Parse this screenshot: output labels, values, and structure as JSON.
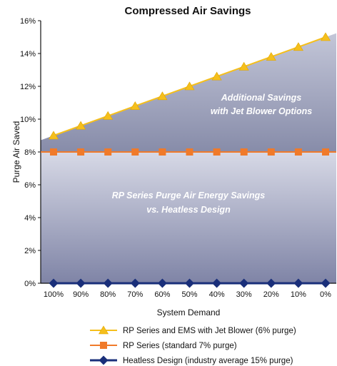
{
  "chart_data": {
    "type": "line",
    "title": "Compressed Air Savings",
    "xlabel": "System Demand",
    "ylabel": "Purge Air Saved",
    "categories": [
      "100%",
      "90%",
      "80%",
      "70%",
      "60%",
      "50%",
      "40%",
      "30%",
      "20%",
      "10%",
      "0%"
    ],
    "ylim": [
      0,
      16
    ],
    "yticks": [
      0,
      2,
      4,
      6,
      8,
      10,
      12,
      14,
      16
    ],
    "ytick_labels": [
      "0%",
      "2%",
      "4%",
      "6%",
      "8%",
      "10%",
      "12%",
      "14%",
      "16%"
    ],
    "series": [
      {
        "name": "RP Series and EMS with Jet Blower (6% purge)",
        "color": "#F5BF1C",
        "marker": "triangle",
        "values": [
          9.0,
          9.6,
          10.2,
          10.8,
          11.4,
          12.0,
          12.6,
          13.2,
          13.8,
          14.4,
          15.0
        ]
      },
      {
        "name": "RP Series (standard 7% purge)",
        "color": "#F07A2A",
        "marker": "square",
        "values": [
          8,
          8,
          8,
          8,
          8,
          8,
          8,
          8,
          8,
          8,
          8
        ]
      },
      {
        "name": "Heatless Design (industry average 15% purge)",
        "color": "#1A2F7A",
        "marker": "diamond",
        "values": [
          0,
          0,
          0,
          0,
          0,
          0,
          0,
          0,
          0,
          0,
          0
        ]
      }
    ],
    "annotations": {
      "upper_line1": "Additional Savings",
      "upper_line2": "with Jet Blower Options",
      "lower_line1": "RP Series Purge Air Energy Savings",
      "lower_line2": "vs. Heatless Design"
    },
    "grid": false,
    "legend_position": "bottom"
  }
}
